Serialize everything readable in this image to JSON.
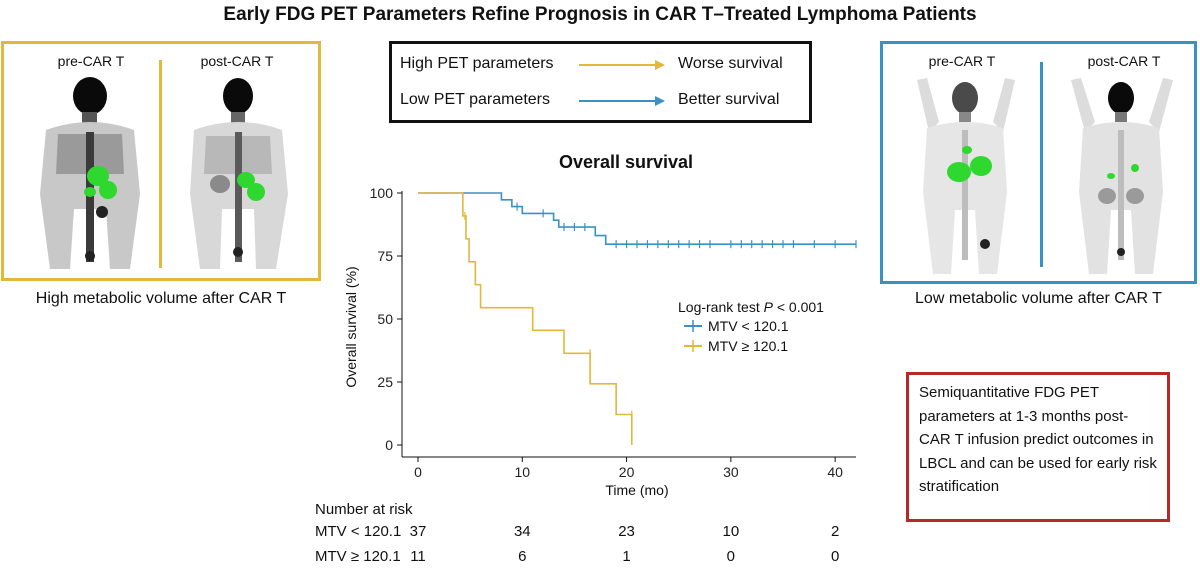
{
  "title": "Early FDG PET Parameters Refine Prognosis in CAR T–Treated Lymphoma Patients",
  "colors": {
    "high": "#e3b73c",
    "low": "#3a91c6",
    "note_border": "#b42a2a",
    "scan_green": "#2fd82f"
  },
  "left_panel": {
    "pre_label": "pre-CAR T",
    "post_label": "post-CAR T",
    "caption": "High metabolic volume after CAR T"
  },
  "right_panel": {
    "pre_label": "pre-CAR T",
    "post_label": "post-CAR T",
    "caption": "Low metabolic volume after CAR T"
  },
  "legend": {
    "high_label": "High PET parameters",
    "high_result": "Worse survival",
    "low_label": "Low PET parameters",
    "low_result": "Better survival"
  },
  "chart_data": {
    "type": "line",
    "subtype": "kaplan-meier",
    "title": "Overall survival",
    "xlabel": "Time (mo)",
    "ylabel": "Overall survival (%)",
    "xlim": [
      0,
      42
    ],
    "ylim": [
      0,
      100
    ],
    "xticks": [
      0,
      10,
      20,
      30,
      40
    ],
    "yticks": [
      0,
      25,
      50,
      75,
      100
    ],
    "legend_title_pre": "Log-rank test ",
    "legend_title_p": "P",
    "legend_title_post": " < 0.001",
    "series": [
      {
        "name": "MTV < 120.1",
        "color": "#3a91c6",
        "steps": [
          [
            0,
            100
          ],
          [
            8,
            100
          ],
          [
            8,
            97.3
          ],
          [
            9,
            97.3
          ],
          [
            9,
            94.6
          ],
          [
            10,
            94.6
          ],
          [
            10,
            91.9
          ],
          [
            13,
            91.9
          ],
          [
            13,
            89.2
          ],
          [
            13.5,
            89.2
          ],
          [
            13.5,
            86.5
          ],
          [
            17,
            86.5
          ],
          [
            17,
            83.1
          ],
          [
            18,
            83.1
          ],
          [
            18,
            79.7
          ],
          [
            42,
            79.7
          ]
        ],
        "censors": [
          [
            9.5,
            94.6
          ],
          [
            12,
            91.9
          ],
          [
            14,
            86.5
          ],
          [
            15,
            86.5
          ],
          [
            16,
            86.5
          ],
          [
            19,
            79.7
          ],
          [
            20,
            79.7
          ],
          [
            21,
            79.7
          ],
          [
            22,
            79.7
          ],
          [
            23,
            79.7
          ],
          [
            24,
            79.7
          ],
          [
            25,
            79.7
          ],
          [
            26,
            79.7
          ],
          [
            27,
            79.7
          ],
          [
            28,
            79.7
          ],
          [
            30,
            79.7
          ],
          [
            31,
            79.7
          ],
          [
            32,
            79.7
          ],
          [
            33,
            79.7
          ],
          [
            34,
            79.7
          ],
          [
            35,
            79.7
          ],
          [
            36,
            79.7
          ],
          [
            38,
            79.7
          ],
          [
            40,
            79.7
          ],
          [
            42,
            79.7
          ]
        ]
      },
      {
        "name": "MTV ≥ 120.1",
        "color": "#e3b73c",
        "steps": [
          [
            0,
            100
          ],
          [
            4.3,
            100
          ],
          [
            4.3,
            90.9
          ],
          [
            4.6,
            90.9
          ],
          [
            4.6,
            81.8
          ],
          [
            4.9,
            81.8
          ],
          [
            4.9,
            72.7
          ],
          [
            5.5,
            72.7
          ],
          [
            5.5,
            63.6
          ],
          [
            6,
            63.6
          ],
          [
            6,
            54.5
          ],
          [
            11,
            54.5
          ],
          [
            11,
            45.5
          ],
          [
            14,
            45.5
          ],
          [
            14,
            36.4
          ],
          [
            16.5,
            36.4
          ],
          [
            16.5,
            24.3
          ],
          [
            19,
            24.3
          ],
          [
            19,
            12.1
          ],
          [
            20.5,
            12.1
          ],
          [
            20.5,
            0
          ]
        ],
        "censors": [
          [
            4.5,
            90.9
          ],
          [
            16.5,
            36.4
          ],
          [
            20.5,
            12.1
          ]
        ]
      }
    ],
    "risk_table": {
      "header": "Number at risk",
      "times": [
        0,
        10,
        20,
        30,
        40
      ],
      "rows": [
        {
          "name": "MTV < 120.1",
          "counts": [
            "37",
            "34",
            "23",
            "10",
            "2"
          ]
        },
        {
          "name": "MTV ≥ 120.1",
          "counts": [
            "11",
            "6",
            "1",
            "0",
            "0"
          ]
        }
      ]
    }
  },
  "note": "Semiquantitative FDG PET parameters at 1-3 months post-CAR T infusion predict outcomes in LBCL and can be used for early risk stratification"
}
